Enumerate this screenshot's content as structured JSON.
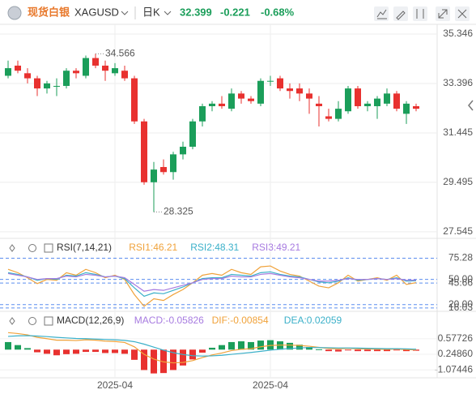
{
  "header": {
    "name": "现货白银",
    "ticker": "XAGUSD",
    "interval": "日K",
    "change": "-0.221",
    "change_pct": "-0.68%"
  },
  "chart_data": [
    {
      "type": "candlestick",
      "categories": [
        null,
        null,
        null,
        null,
        null,
        null,
        null,
        null,
        null,
        null,
        null,
        "2025-04",
        null,
        null,
        null,
        null,
        null,
        null,
        null,
        null,
        null,
        null,
        null,
        null,
        null,
        null,
        null,
        "2025-04",
        null,
        null,
        null,
        null,
        null,
        null,
        null,
        null,
        null,
        null,
        null,
        null,
        null,
        null,
        null
      ],
      "open": [
        33.7,
        34.1,
        33.8,
        33.6,
        33.2,
        33.3,
        33.3,
        33.9,
        33.7,
        34.4,
        34.1,
        33.8,
        33.9,
        33.6,
        31.9,
        29.5,
        30.1,
        29.9,
        30.6,
        30.9,
        31.9,
        32.5,
        32.6,
        32.4,
        33.0,
        32.8,
        32.6,
        33.5,
        33.6,
        33.2,
        33.2,
        33.0,
        32.6,
        32.1,
        32.0,
        32.3,
        33.2,
        32.5,
        32.5,
        32.6,
        33.0,
        32.2,
        32.5
      ],
      "high": [
        34.3,
        34.3,
        34.0,
        33.7,
        33.5,
        33.6,
        34.0,
        34.0,
        34.5,
        34.566,
        34.3,
        34.2,
        34.1,
        33.7,
        32.0,
        30.3,
        30.4,
        30.7,
        31.1,
        32.0,
        32.6,
        32.7,
        32.9,
        33.2,
        33.1,
        32.9,
        33.6,
        33.7,
        33.7,
        33.4,
        33.4,
        33.2,
        32.9,
        32.4,
        32.7,
        33.3,
        33.3,
        32.7,
        32.9,
        33.2,
        33.1,
        32.7,
        32.6
      ],
      "low": [
        33.6,
        33.8,
        33.4,
        32.9,
        33.0,
        32.9,
        33.2,
        33.6,
        33.6,
        34.0,
        33.5,
        33.7,
        33.5,
        31.8,
        29.4,
        28.325,
        29.8,
        29.6,
        30.4,
        30.8,
        31.7,
        32.3,
        32.4,
        32.3,
        32.6,
        32.6,
        32.5,
        33.3,
        33.1,
        32.8,
        32.7,
        32.2,
        31.7,
        31.9,
        31.9,
        32.2,
        32.4,
        32.3,
        32.0,
        32.5,
        32.3,
        31.8,
        32.3
      ],
      "close": [
        34.0,
        33.9,
        33.6,
        33.2,
        33.4,
        33.3,
        33.9,
        33.8,
        34.4,
        34.1,
        33.9,
        34.0,
        33.6,
        31.9,
        29.5,
        30.0,
        29.9,
        30.6,
        30.9,
        31.9,
        32.5,
        32.6,
        32.5,
        33.0,
        32.8,
        32.7,
        33.5,
        33.5,
        33.2,
        33.1,
        33.0,
        32.8,
        32.5,
        32.0,
        32.4,
        33.2,
        32.5,
        32.6,
        32.8,
        33.0,
        32.4,
        32.6,
        32.399
      ],
      "up_color": "#1b9e5a",
      "down_color": "#e8312f",
      "ylim": [
        27.35,
        35.73
      ],
      "yticks": [
        35.346,
        33.396,
        31.445,
        29.495,
        27.545
      ],
      "grid": true
    },
    {
      "type": "line",
      "title": "RSI(7,14,21)",
      "series": [
        {
          "name": "RSI1:46.21",
          "color": "#f0a23a",
          "values": [
            62,
            58,
            52,
            45,
            50,
            49,
            58,
            55,
            62,
            58,
            52,
            55,
            50,
            32,
            18,
            27,
            25,
            32,
            38,
            46,
            55,
            57,
            55,
            62,
            58,
            56,
            65,
            66,
            60,
            56,
            54,
            48,
            42,
            40,
            46,
            55,
            48,
            50,
            52,
            49,
            55,
            44,
            46.21
          ]
        },
        {
          "name": "RSI2:48.31",
          "color": "#3bb0c9",
          "values": [
            58,
            56,
            53,
            49,
            51,
            50,
            55,
            54,
            58,
            56,
            53,
            54,
            51,
            40,
            30,
            34,
            33,
            37,
            41,
            46,
            51,
            52,
            52,
            56,
            55,
            54,
            58,
            59,
            56,
            54,
            53,
            50,
            47,
            46,
            48,
            52,
            49,
            50,
            51,
            50,
            52,
            48,
            48.31
          ]
        },
        {
          "name": "RSI3:49.21",
          "color": "#a77be0",
          "values": [
            57,
            55,
            53,
            50,
            51,
            51,
            54,
            53,
            56,
            55,
            53,
            54,
            52,
            44,
            36,
            38,
            37,
            40,
            43,
            46,
            50,
            51,
            51,
            54,
            53,
            53,
            56,
            57,
            55,
            53,
            52,
            50,
            48,
            48,
            49,
            51,
            50,
            50,
            51,
            50,
            51,
            49,
            49.21
          ]
        }
      ],
      "ylim": [
        14,
        95
      ],
      "yticks": [
        75.28,
        {
          "value": 50,
          "label": "50.00"
        },
        45.66,
        {
          "value": 20,
          "label": "20.00"
        },
        16.03
      ]
    },
    {
      "type": "macd",
      "title": "MACD(12,26,9)",
      "series": [
        {
          "name": "MACD:-0.05826",
          "kind": "bar",
          "color": "#a77be0",
          "values": [
            0.4,
            0.24,
            0.08,
            -0.14,
            -0.22,
            -0.3,
            -0.24,
            -0.22,
            -0.12,
            -0.12,
            -0.18,
            -0.18,
            -0.22,
            -0.54,
            -1.08,
            -1.26,
            -1.24,
            -1.08,
            -0.84,
            -0.52,
            -0.16,
            0.1,
            0.24,
            0.4,
            0.44,
            0.4,
            0.48,
            0.5,
            0.44,
            0.36,
            0.26,
            0.14,
            0.02,
            -0.08,
            -0.1,
            -0.04,
            -0.08,
            -0.08,
            -0.08,
            -0.08,
            -0.04,
            -0.08,
            -0.05826
          ]
        },
        {
          "name": "DIF:-0.00854",
          "kind": "line",
          "color": "#f0a23a",
          "values": [
            0.9,
            0.85,
            0.78,
            0.65,
            0.58,
            0.5,
            0.5,
            0.48,
            0.52,
            0.5,
            0.45,
            0.43,
            0.38,
            0.15,
            -0.25,
            -0.5,
            -0.65,
            -0.7,
            -0.68,
            -0.58,
            -0.42,
            -0.28,
            -0.18,
            -0.05,
            0.02,
            0.05,
            0.15,
            0.22,
            0.24,
            0.24,
            0.22,
            0.18,
            0.12,
            0.06,
            0.04,
            0.07,
            0.04,
            0.03,
            0.02,
            0.01,
            0.03,
            0.0,
            -0.00854
          ]
        },
        {
          "name": "DEA:0.02059",
          "kind": "line",
          "color": "#3bb0c9",
          "values": [
            0.7,
            0.73,
            0.74,
            0.72,
            0.69,
            0.65,
            0.62,
            0.59,
            0.58,
            0.56,
            0.54,
            0.52,
            0.49,
            0.42,
            0.29,
            0.13,
            -0.03,
            -0.16,
            -0.26,
            -0.32,
            -0.34,
            -0.33,
            -0.3,
            -0.25,
            -0.2,
            -0.15,
            -0.09,
            -0.03,
            0.02,
            0.06,
            0.09,
            0.11,
            0.11,
            0.1,
            0.09,
            0.09,
            0.08,
            0.07,
            0.06,
            0.05,
            0.05,
            0.04,
            0.02059
          ]
        }
      ],
      "up_color": "#1b9e5a",
      "down_color": "#e8312f",
      "ylim": [
        -1.405,
        1.857
      ],
      "yticks": [
        0.57726,
        {
          "value": -0.2486,
          "label": "-0.24860"
        },
        -1.07446
      ]
    }
  ]
}
